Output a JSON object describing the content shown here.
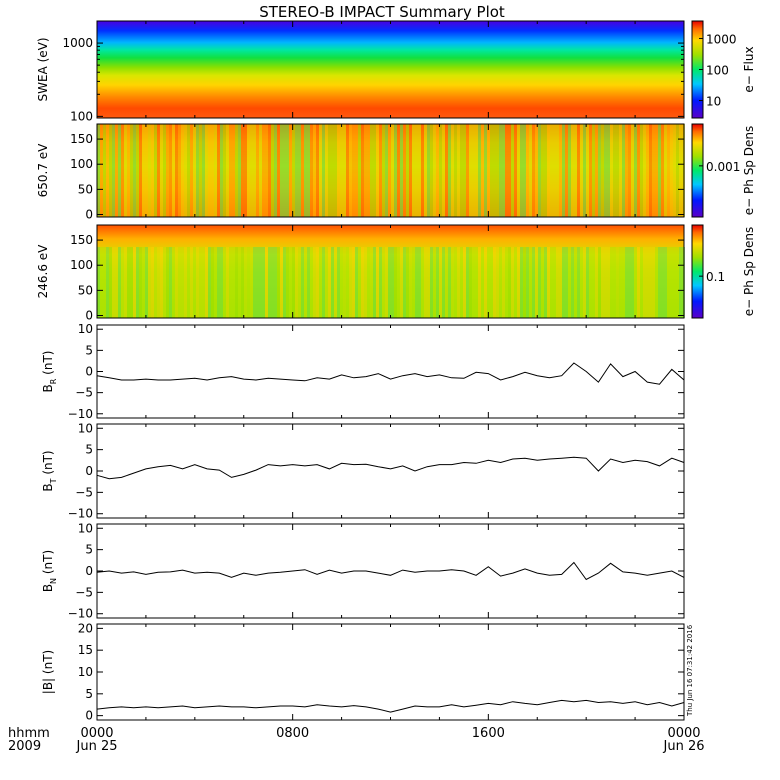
{
  "title": "STEREO-B IMPACT Summary Plot",
  "x_axis": {
    "label_line1": "hhmm",
    "label_line2": "2009",
    "ticks": [
      {
        "hour": 0,
        "time": "0000",
        "date": "Jun 25"
      },
      {
        "hour": 8,
        "time": "0800",
        "date": ""
      },
      {
        "hour": 16,
        "time": "1600",
        "date": ""
      },
      {
        "hour": 24,
        "time": "0000",
        "date": "Jun 26"
      }
    ],
    "range_hours": [
      0,
      24
    ]
  },
  "timestamp": "Thu Jun 16 07:31:42 2016",
  "chart_data": [
    {
      "type": "heatmap",
      "ylabel": "SWEA (eV)",
      "yscale": "log",
      "ylim": [
        95,
        2000
      ],
      "ytick_labels": [
        "1000",
        "100"
      ],
      "colorbar": {
        "label": "e− Flux",
        "scale": "log",
        "tick_labels": [
          "1000",
          "100",
          "10"
        ]
      }
    },
    {
      "type": "heatmap",
      "ylabel": "650.7 eV",
      "ylim": [
        -5,
        180
      ],
      "ytick_labels": [
        "150",
        "100",
        "50",
        "0"
      ],
      "colorbar": {
        "label": "e− Ph Sp Dens",
        "scale": "log",
        "tick_labels": [
          "0.001"
        ]
      }
    },
    {
      "type": "heatmap",
      "ylabel": "246.6 eV",
      "ylim": [
        -5,
        180
      ],
      "ytick_labels": [
        "150",
        "100",
        "50",
        "0"
      ],
      "colorbar": {
        "label": "e− Ph Sp Dens",
        "scale": "log",
        "tick_labels": [
          "0.1"
        ]
      }
    },
    {
      "type": "line",
      "ylabel": "B_R (nT)",
      "ylabel_main": "B",
      "ylabel_sub": "R",
      "ylabel_unit": " (nT)",
      "ylim": [
        -11,
        11
      ],
      "ytick_labels": [
        "10",
        "5",
        "0",
        "−5",
        "−10"
      ],
      "x": [
        0,
        0.5,
        1,
        1.5,
        2,
        2.5,
        3,
        3.5,
        4,
        4.5,
        5,
        5.5,
        6,
        6.5,
        7,
        7.5,
        8,
        8.5,
        9,
        9.5,
        10,
        10.5,
        11,
        11.5,
        12,
        12.5,
        13,
        13.5,
        14,
        14.5,
        15,
        15.5,
        16,
        16.5,
        17,
        17.5,
        18,
        18.5,
        19,
        19.5,
        20,
        20.5,
        21,
        21.5,
        22,
        22.5,
        23,
        23.5,
        24
      ],
      "y": [
        -1,
        -1.5,
        -2,
        -2,
        -1.8,
        -2,
        -2,
        -1.8,
        -1.6,
        -2,
        -1.5,
        -1.2,
        -1.8,
        -2,
        -1.6,
        -1.8,
        -2,
        -2.2,
        -1.5,
        -1.8,
        -0.8,
        -1.5,
        -1.2,
        -0.5,
        -1.8,
        -1,
        -0.5,
        -1.2,
        -0.8,
        -1.5,
        -1.6,
        -0.2,
        -0.5,
        -2,
        -1.2,
        -0.2,
        -1,
        -1.5,
        -1,
        2,
        0,
        -2.5,
        1.8,
        -1.2,
        0,
        -2.5,
        -3,
        0.5,
        -2
      ]
    },
    {
      "type": "line",
      "ylabel": "B_T (nT)",
      "ylabel_main": "B",
      "ylabel_sub": "T",
      "ylabel_unit": " (nT)",
      "ylim": [
        -11,
        11
      ],
      "ytick_labels": [
        "10",
        "5",
        "0",
        "−5",
        "−10"
      ],
      "x": [
        0,
        0.5,
        1,
        1.5,
        2,
        2.5,
        3,
        3.5,
        4,
        4.5,
        5,
        5.5,
        6,
        6.5,
        7,
        7.5,
        8,
        8.5,
        9,
        9.5,
        10,
        10.5,
        11,
        11.5,
        12,
        12.5,
        13,
        13.5,
        14,
        14.5,
        15,
        15.5,
        16,
        16.5,
        17,
        17.5,
        18,
        18.5,
        19,
        19.5,
        20,
        20.5,
        21,
        21.5,
        22,
        22.5,
        23,
        23.5,
        24
      ],
      "y": [
        -1,
        -1.8,
        -1.5,
        -0.5,
        0.5,
        1,
        1.3,
        0.5,
        1.5,
        0.5,
        0.2,
        -1.5,
        -0.8,
        0.2,
        1.5,
        1.2,
        1.5,
        1.2,
        1.5,
        0.5,
        1.8,
        1.5,
        1.6,
        1,
        0.5,
        1.2,
        0,
        1,
        1.5,
        1.5,
        2,
        1.8,
        2.5,
        2,
        2.8,
        3,
        2.5,
        2.8,
        3,
        3.2,
        3,
        0,
        2.8,
        2,
        2.5,
        2.2,
        1.2,
        3,
        2
      ]
    },
    {
      "type": "line",
      "ylabel": "B_N (nT)",
      "ylabel_main": "B",
      "ylabel_sub": "N",
      "ylabel_unit": " (nT)",
      "ylim": [
        -11,
        11
      ],
      "ytick_labels": [
        "10",
        "5",
        "0",
        "−5",
        "−10"
      ],
      "x": [
        0,
        0.5,
        1,
        1.5,
        2,
        2.5,
        3,
        3.5,
        4,
        4.5,
        5,
        5.5,
        6,
        6.5,
        7,
        7.5,
        8,
        8.5,
        9,
        9.5,
        10,
        10.5,
        11,
        11.5,
        12,
        12.5,
        13,
        13.5,
        14,
        14.5,
        15,
        15.5,
        16,
        16.5,
        17,
        17.5,
        18,
        18.5,
        19,
        19.5,
        20,
        20.5,
        21,
        21.5,
        22,
        22.5,
        23,
        23.5,
        24
      ],
      "y": [
        -0.3,
        0,
        -0.5,
        -0.2,
        -0.8,
        -0.3,
        -0.2,
        0.2,
        -0.5,
        -0.3,
        -0.5,
        -1.5,
        -0.5,
        -1,
        -0.5,
        -0.3,
        0,
        0.3,
        -0.8,
        0.2,
        -0.5,
        0,
        0,
        -0.5,
        -1,
        0.2,
        -0.3,
        0,
        0,
        0.3,
        0,
        -1,
        1,
        -1.2,
        -0.5,
        0.5,
        -0.5,
        -1,
        -0.8,
        2,
        -2,
        -0.5,
        1.8,
        -0.2,
        -0.5,
        -1,
        -0.5,
        0,
        -1.5
      ]
    },
    {
      "type": "line",
      "ylabel": "|B| (nT)",
      "ylim": [
        -1,
        21
      ],
      "ytick_labels": [
        "20",
        "15",
        "10",
        "5",
        "0"
      ],
      "x": [
        0,
        0.5,
        1,
        1.5,
        2,
        2.5,
        3,
        3.5,
        4,
        4.5,
        5,
        5.5,
        6,
        6.5,
        7,
        7.5,
        8,
        8.5,
        9,
        9.5,
        10,
        10.5,
        11,
        11.5,
        12,
        12.5,
        13,
        13.5,
        14,
        14.5,
        15,
        15.5,
        16,
        16.5,
        17,
        17.5,
        18,
        18.5,
        19,
        19.5,
        20,
        20.5,
        21,
        21.5,
        22,
        22.5,
        23,
        23.5,
        24
      ],
      "y": [
        1.5,
        1.8,
        2,
        1.8,
        2,
        1.8,
        2,
        2.2,
        1.8,
        2,
        2.2,
        2,
        2,
        1.8,
        2,
        2.2,
        2.2,
        2,
        2.5,
        2.2,
        2,
        2.3,
        2,
        1.5,
        0.8,
        1.5,
        2.2,
        2,
        2,
        2.5,
        2,
        2.4,
        2.8,
        2.5,
        3.2,
        2.8,
        2.5,
        3,
        3.5,
        3.2,
        3.5,
        3,
        3.2,
        2.8,
        3.2,
        2.5,
        3,
        2.2,
        3
      ]
    }
  ]
}
